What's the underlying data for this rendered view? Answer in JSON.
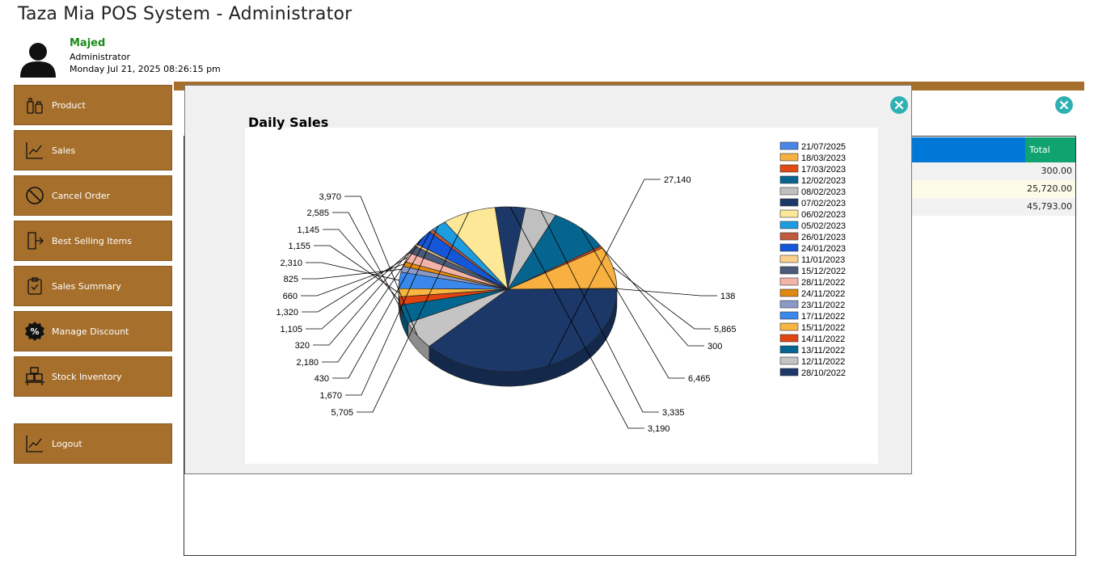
{
  "app": {
    "title": "Taza Mia POS System - Administrator"
  },
  "user": {
    "name": "Majed",
    "role": "Administrator",
    "datetime": "Monday Jul 21, 2025 08:26:15 pm",
    "avatar_icon": "person-silhouette-icon"
  },
  "sidebar": {
    "items": [
      {
        "label": "Product",
        "icon": "product-icon"
      },
      {
        "label": "Sales",
        "icon": "line-chart-icon"
      },
      {
        "label": "Cancel Order",
        "icon": "cancel-icon"
      },
      {
        "label": "Best Selling Items",
        "icon": "exit-door-icon"
      },
      {
        "label": "Sales Summary",
        "icon": "clipboard-check-icon"
      },
      {
        "label": "Manage Discount",
        "icon": "discount-badge-icon"
      },
      {
        "label": "Stock Inventory",
        "icon": "boxes-cart-icon"
      },
      {
        "label": "Logout",
        "icon": "line-chart-icon"
      }
    ]
  },
  "background_table": {
    "total_header": "Total",
    "rows": [
      "300.00",
      "25,720.00",
      "45,793.00"
    ]
  },
  "modal": {
    "title": "Daily Sales"
  },
  "colors": {
    "brand": "#a66f2c",
    "accent_blue": "#0078d7",
    "accent_green": "#10a36f",
    "close_button": "#2fb0b3"
  },
  "chart_data": {
    "type": "pie",
    "title": "Daily Sales",
    "legend_position": "right",
    "series": [
      {
        "label": "21/07/2025",
        "value": 138,
        "color": "#4a86e8"
      },
      {
        "label": "18/03/2023",
        "value": 5865,
        "color": "#f8b140"
      },
      {
        "label": "17/03/2023",
        "value": 300,
        "color": "#e04a14"
      },
      {
        "label": "12/02/2023",
        "value": 6465,
        "color": "#06658f"
      },
      {
        "label": "08/02/2023",
        "value": 3335,
        "color": "#c0c0c0"
      },
      {
        "label": "07/02/2023",
        "value": 3190,
        "color": "#1b3868"
      },
      {
        "label": "06/02/2023",
        "value": 5705,
        "color": "#fde898"
      },
      {
        "label": "05/02/2023",
        "value": 1670,
        "color": "#1e9ce0"
      },
      {
        "label": "26/01/2023",
        "value": 430,
        "color": "#c05a3c"
      },
      {
        "label": "24/01/2023",
        "value": 2180,
        "color": "#1456d8"
      },
      {
        "label": "11/01/2023",
        "value": 320,
        "color": "#fad08c"
      },
      {
        "label": "15/12/2022",
        "value": 1105,
        "color": "#4a5a78"
      },
      {
        "label": "28/11/2022",
        "value": 1320,
        "color": "#f3b3a8"
      },
      {
        "label": "24/11/2022",
        "value": 660,
        "color": "#e08810"
      },
      {
        "label": "23/11/2022",
        "value": 825,
        "color": "#8a9ac8"
      },
      {
        "label": "17/11/2022",
        "value": 2310,
        "color": "#3a88ec"
      },
      {
        "label": "15/11/2022",
        "value": 1155,
        "color": "#f8b540"
      },
      {
        "label": "14/11/2022",
        "value": 1145,
        "color": "#e04410"
      },
      {
        "label": "13/11/2022",
        "value": 2585,
        "color": "#036690"
      },
      {
        "label": "12/11/2022",
        "value": 3970,
        "color": "#c4c4c4"
      },
      {
        "label": "28/10/2022",
        "value": 27140,
        "color": "#1b3868"
      }
    ],
    "slice_order_counterclockwise": [
      "21/07/2025",
      "18/03/2023",
      "17/03/2023",
      "12/02/2023",
      "08/02/2023",
      "07/02/2023",
      "06/02/2023",
      "05/02/2023",
      "26/01/2023",
      "24/01/2023",
      "11/01/2023",
      "15/12/2022",
      "28/11/2022",
      "24/11/2022",
      "23/11/2022",
      "17/11/2022",
      "15/11/2022",
      "14/11/2022",
      "13/11/2022",
      "12/11/2022",
      "28/10/2022"
    ]
  }
}
